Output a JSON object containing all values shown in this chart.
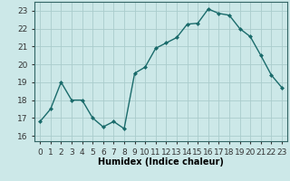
{
  "x": [
    0,
    1,
    2,
    3,
    4,
    5,
    6,
    7,
    8,
    9,
    10,
    11,
    12,
    13,
    14,
    15,
    16,
    17,
    18,
    19,
    20,
    21,
    22,
    23
  ],
  "y": [
    16.8,
    17.5,
    19.0,
    18.0,
    18.0,
    17.0,
    16.5,
    16.8,
    16.4,
    19.5,
    19.85,
    20.9,
    21.2,
    21.5,
    22.25,
    22.3,
    23.1,
    22.85,
    22.75,
    22.0,
    21.55,
    20.5,
    19.4,
    18.7
  ],
  "line_color": "#1a6b6b",
  "marker": "D",
  "markersize": 2,
  "linewidth": 1.0,
  "bg_color": "#cce8e8",
  "grid_color": "#aacccc",
  "xlabel": "Humidex (Indice chaleur)",
  "ylabel_ticks": [
    16,
    17,
    18,
    19,
    20,
    21,
    22,
    23
  ],
  "xlim": [
    -0.5,
    23.5
  ],
  "ylim": [
    15.7,
    23.5
  ],
  "xlabel_fontsize": 7,
  "tick_fontsize": 6.5
}
